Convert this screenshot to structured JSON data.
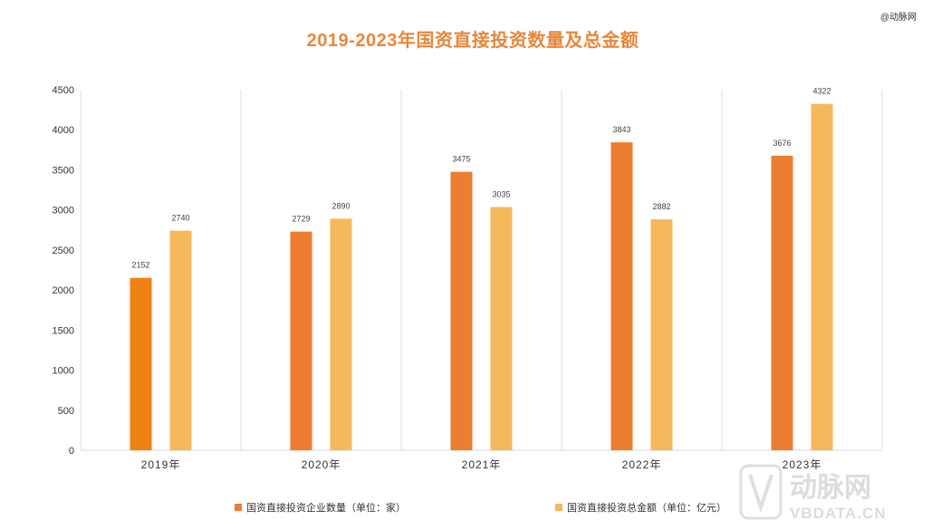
{
  "watermark": {
    "top_right": "@动脉网",
    "logo_cn": "动脉网",
    "logo_en": "VBDATA.CN"
  },
  "chart_data": {
    "type": "bar",
    "title": "2019-2023年国资直接投资数量及总金额",
    "categories": [
      "2019年",
      "2020年",
      "2021年",
      "2022年",
      "2023年"
    ],
    "series": [
      {
        "name": "国资直接投资企业数量（单位：家）",
        "values": [
          2152,
          2729,
          3475,
          3843,
          3676
        ],
        "color": "#ed7d31"
      },
      {
        "name": "国资直接投资总金额（单位：亿元）",
        "values": [
          2740,
          2890,
          3035,
          2882,
          4322
        ],
        "color": "#f6b85a"
      }
    ],
    "highlight": {
      "series": 0,
      "index": 0,
      "color": "#f08214"
    },
    "ylim": [
      0,
      4500
    ],
    "yticks": [
      0,
      500,
      1000,
      1500,
      2000,
      2500,
      3000,
      3500,
      4000,
      4500
    ],
    "xlabel": "",
    "ylabel": "",
    "legend_position": "bottom",
    "grid": "vertical category separators",
    "colors": {
      "title": "#e8873a",
      "axis": "#d9d9d9"
    }
  }
}
